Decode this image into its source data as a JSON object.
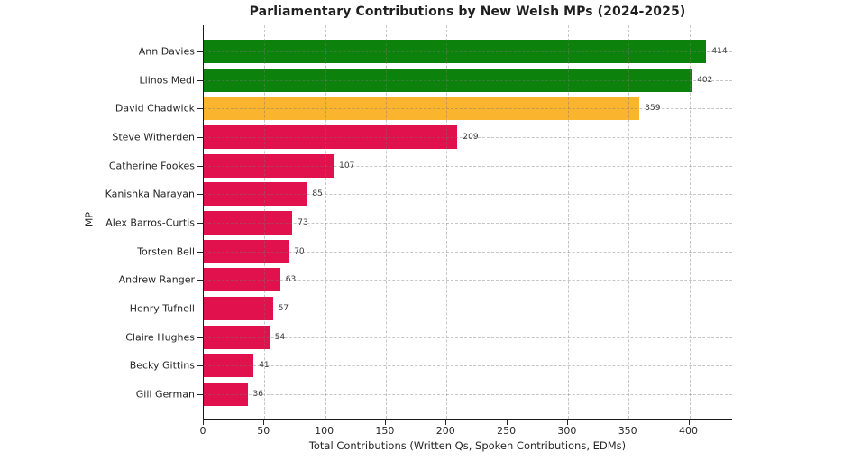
{
  "chart_data": {
    "type": "bar",
    "orientation": "horizontal",
    "title": "Parliamentary Contributions by New Welsh MPs (2024-2025)",
    "xlabel": "Total Contributions (Written Qs, Spoken Contributions, EDMs)",
    "ylabel": "MP",
    "categories": [
      "Ann Davies",
      "Llinos Medi",
      "David Chadwick",
      "Steve Witherden",
      "Catherine Fookes",
      "Kanishka Narayan",
      "Alex Barros-Curtis",
      "Torsten Bell",
      "Andrew Ranger",
      "Henry Tufnell",
      "Claire Hughes",
      "Becky Gittins",
      "Gill German"
    ],
    "values": [
      414,
      402,
      359,
      209,
      107,
      85,
      73,
      70,
      63,
      57,
      54,
      41,
      36
    ],
    "bar_colors": [
      "#0C810C",
      "#0C810C",
      "#FBB42D",
      "#E0114C",
      "#E0114C",
      "#E0114C",
      "#E0114C",
      "#E0114C",
      "#E0114C",
      "#E0114C",
      "#E0114C",
      "#E0114C",
      "#E0114C"
    ],
    "xlim": [
      0,
      436
    ],
    "xticks": [
      0,
      50,
      100,
      150,
      200,
      250,
      300,
      350,
      400
    ],
    "grid": {
      "visible": true,
      "style": "dashed",
      "axis": "both"
    },
    "legend": null
  },
  "style": {
    "green": "#0C810C",
    "orange": "#FBB42D",
    "crimson": "#E0114C",
    "text_color": "#262626",
    "grid_color": "#c9c9c9",
    "background": "#ffffff"
  }
}
